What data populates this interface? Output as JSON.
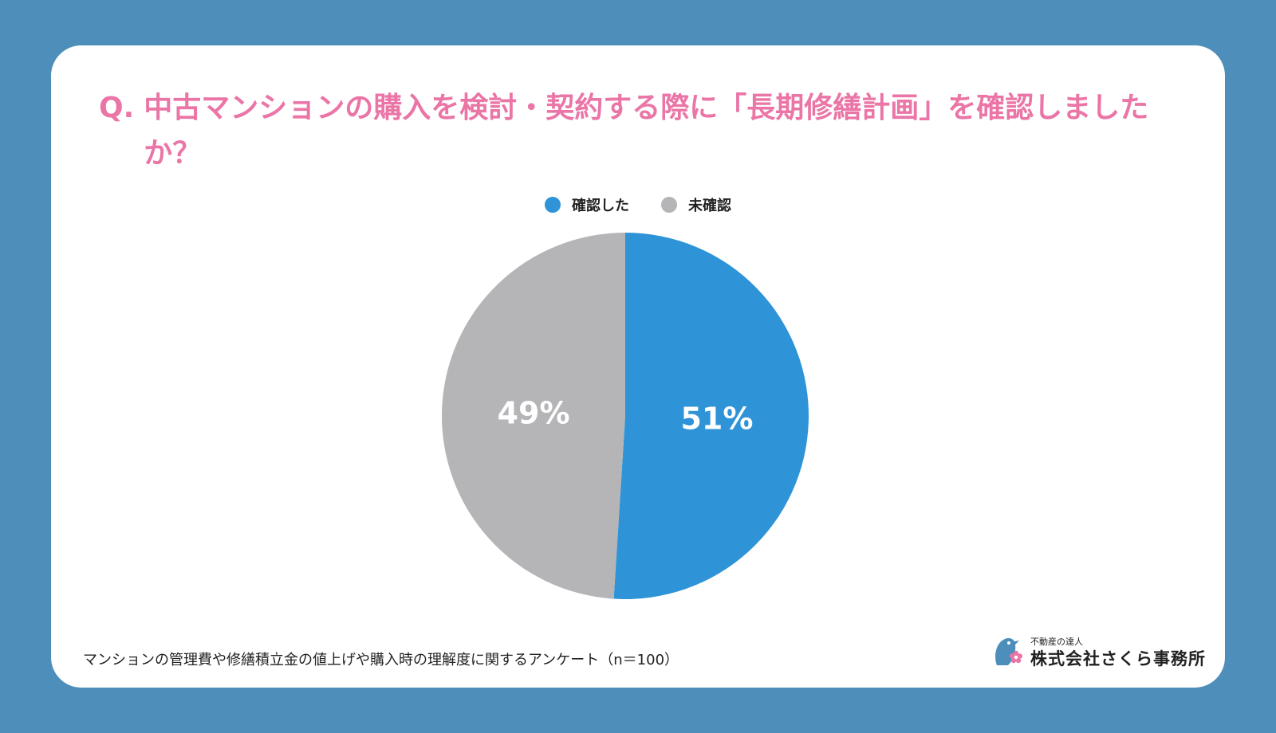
{
  "title": {
    "prefix": "Q.",
    "text": "中古マンションの購入を検討・契約する際に「長期修繕計画」を確認しましたか？"
  },
  "chart_data": {
    "type": "pie",
    "title": "Q. 中古マンションの購入を検討・契約する際に「長期修繕計画」を確認しましたか？",
    "categories": [
      "確認した",
      "未確認"
    ],
    "values": [
      51,
      49
    ],
    "labels": [
      "51%",
      "49%"
    ],
    "colors": [
      "#2e93d7",
      "#b5b5b8"
    ],
    "legend_position": "top-center",
    "start": "12 o'clock, clockwise"
  },
  "legend": [
    {
      "label": "確認した",
      "color": "#2e93d7"
    },
    {
      "label": "未確認",
      "color": "#b5b5b8"
    }
  ],
  "footnote": "マンションの管理費や修繕積立金の値上げや購入時の理解度に関するアンケート（n＝100）",
  "logo": {
    "tagline": "不動産の達人",
    "name": "株式会社さくら事務所",
    "icon": "bird-sakura-logo-icon"
  },
  "colors": {
    "background": "#4d8fba",
    "card": "#ffffff",
    "title": "#ea75a6"
  }
}
